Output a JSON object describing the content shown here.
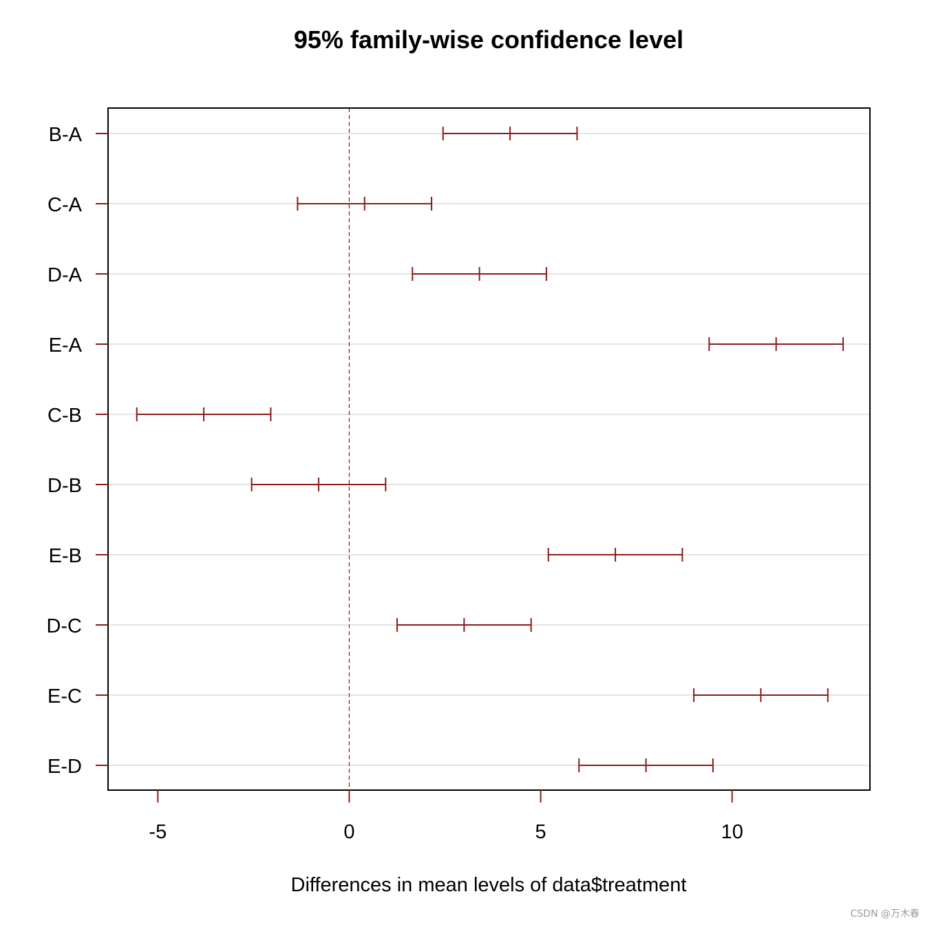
{
  "watermark": "CSDN @万木春",
  "colors": {
    "interval": "#8b1a1a",
    "zero_line": "#8b1a1a",
    "grid": "#d3d3d3",
    "frame": "#000000"
  },
  "chart_data": {
    "type": "errorbar",
    "title": "95% family-wise confidence level",
    "xlabel": "Differences in mean levels of data$treatment",
    "ylabel": "",
    "xlim": [
      -6.3,
      13.6
    ],
    "xticks": [
      -5,
      0,
      5,
      10
    ],
    "xtick_labels": [
      "-5",
      "0",
      "5",
      "10"
    ],
    "reference_line": 0,
    "grid": true,
    "comparisons": [
      {
        "label": "B-A",
        "lwr": 2.45,
        "diff": 4.2,
        "upr": 5.95
      },
      {
        "label": "C-A",
        "lwr": -1.35,
        "diff": 0.4,
        "upr": 2.15
      },
      {
        "label": "D-A",
        "lwr": 1.65,
        "diff": 3.4,
        "upr": 5.15
      },
      {
        "label": "E-A",
        "lwr": 9.4,
        "diff": 11.15,
        "upr": 12.9
      },
      {
        "label": "C-B",
        "lwr": -5.55,
        "diff": -3.8,
        "upr": -2.05
      },
      {
        "label": "D-B",
        "lwr": -2.55,
        "diff": -0.8,
        "upr": 0.95
      },
      {
        "label": "E-B",
        "lwr": 5.2,
        "diff": 6.95,
        "upr": 8.7
      },
      {
        "label": "D-C",
        "lwr": 1.25,
        "diff": 3.0,
        "upr": 4.75
      },
      {
        "label": "E-C",
        "lwr": 9.0,
        "diff": 10.75,
        "upr": 12.5
      },
      {
        "label": "E-D",
        "lwr": 6.0,
        "diff": 7.75,
        "upr": 9.5
      }
    ]
  }
}
